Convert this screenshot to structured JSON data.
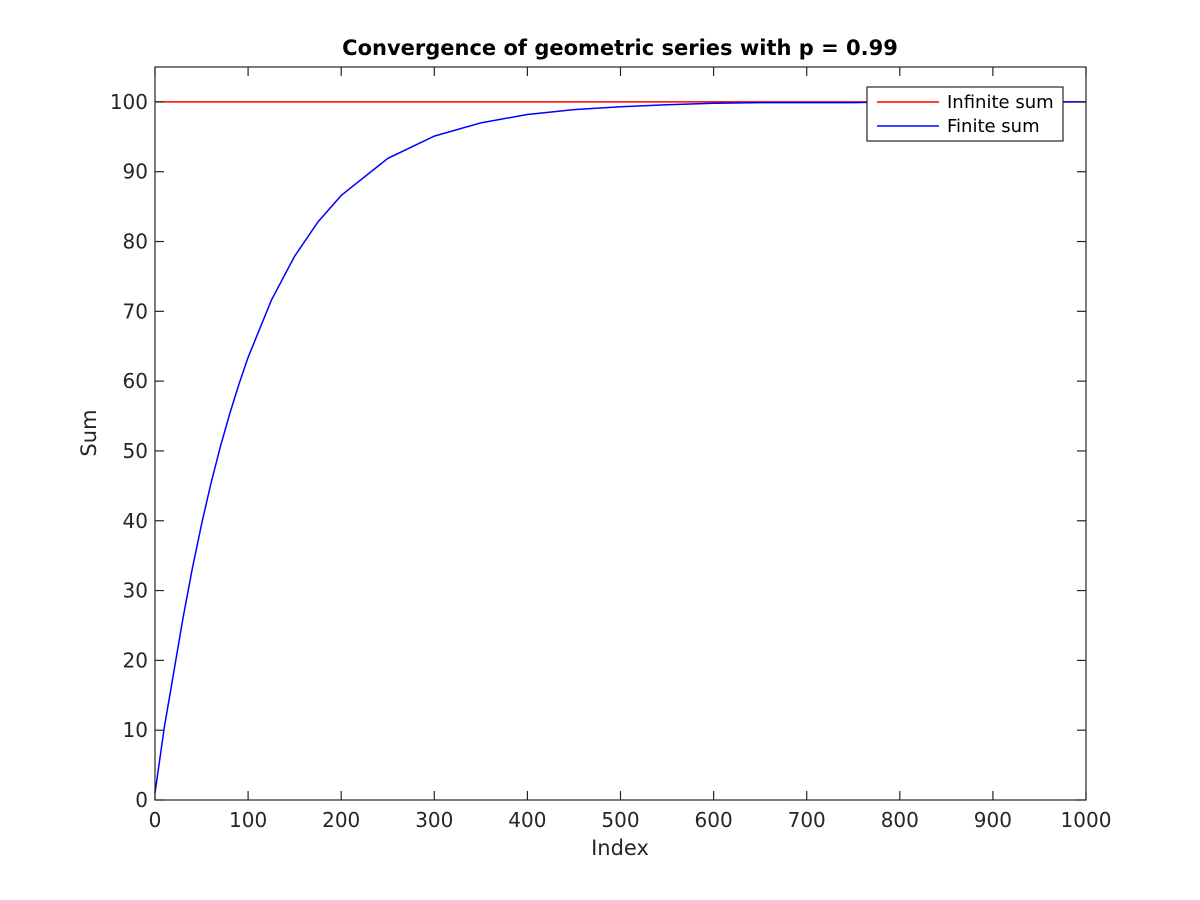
{
  "chart_data": {
    "type": "line",
    "title": "Convergence of geometric series with p = 0.99",
    "xlabel": "Index",
    "ylabel": "Sum",
    "xlim": [
      0,
      1000
    ],
    "ylim": [
      0,
      105
    ],
    "xticks": [
      "0",
      "100",
      "200",
      "300",
      "400",
      "500",
      "600",
      "700",
      "800",
      "900",
      "1000"
    ],
    "yticks": [
      "0",
      "10",
      "20",
      "30",
      "40",
      "50",
      "60",
      "70",
      "80",
      "90",
      "100"
    ],
    "grid": false,
    "legend_position": "top-right",
    "series": [
      {
        "name": "Infinite sum",
        "color": "#ff0000",
        "x": [
          0,
          1000
        ],
        "y": [
          100,
          100
        ]
      },
      {
        "name": "Finite sum",
        "color": "#0000ff",
        "x": [
          0,
          10,
          20,
          30,
          40,
          50,
          60,
          70,
          80,
          90,
          100,
          125,
          150,
          175,
          200,
          250,
          300,
          350,
          400,
          450,
          500,
          550,
          600,
          650,
          700,
          750,
          800,
          850,
          900,
          950,
          1000
        ],
        "y": [
          1,
          10.4,
          18.2,
          26.0,
          33.1,
          39.5,
          45.3,
          50.5,
          55.2,
          59.5,
          63.4,
          71.6,
          77.9,
          82.8,
          86.6,
          91.9,
          95.1,
          97.0,
          98.2,
          98.9,
          99.3,
          99.6,
          99.8,
          99.9,
          99.9,
          99.9,
          100,
          100,
          100,
          100,
          100
        ]
      }
    ]
  }
}
